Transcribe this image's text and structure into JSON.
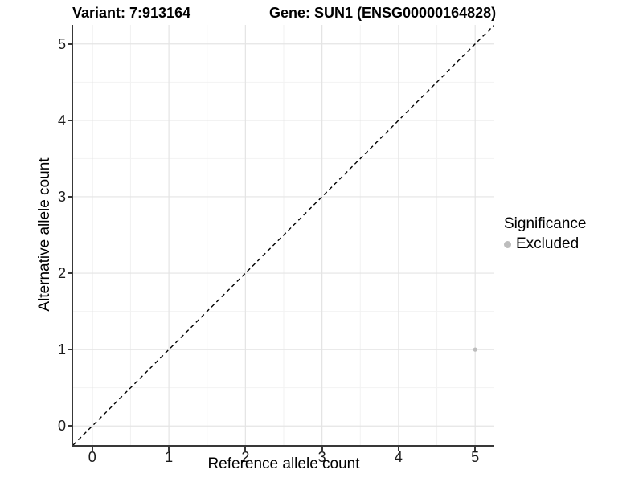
{
  "chart_data": {
    "type": "scatter",
    "title_left": "Variant: 7:913164",
    "title_right": "Gene: SUN1 (ENSG00000164828)",
    "xlabel": "Reference allele count",
    "ylabel": "Alternative allele count",
    "xticks": [
      0,
      1,
      2,
      3,
      4,
      5
    ],
    "yticks": [
      0,
      1,
      2,
      3,
      4,
      5
    ],
    "xlim": [
      -0.25,
      5.25
    ],
    "ylim": [
      -0.25,
      5.25
    ],
    "grid": {
      "major": true,
      "minor": true,
      "major_color": "#e4e4e4",
      "minor_color": "#f2f2f2"
    },
    "points": [
      {
        "x": 5,
        "y": 1,
        "series": "Excluded",
        "color": "#bdbdbd"
      }
    ],
    "reference_line": {
      "equation": "y = x",
      "style": "dashed",
      "color": "#000000"
    },
    "legend": {
      "title": "Significance",
      "position": "right",
      "entries": [
        {
          "label": "Excluded",
          "color": "#bdbdbd"
        }
      ]
    }
  }
}
